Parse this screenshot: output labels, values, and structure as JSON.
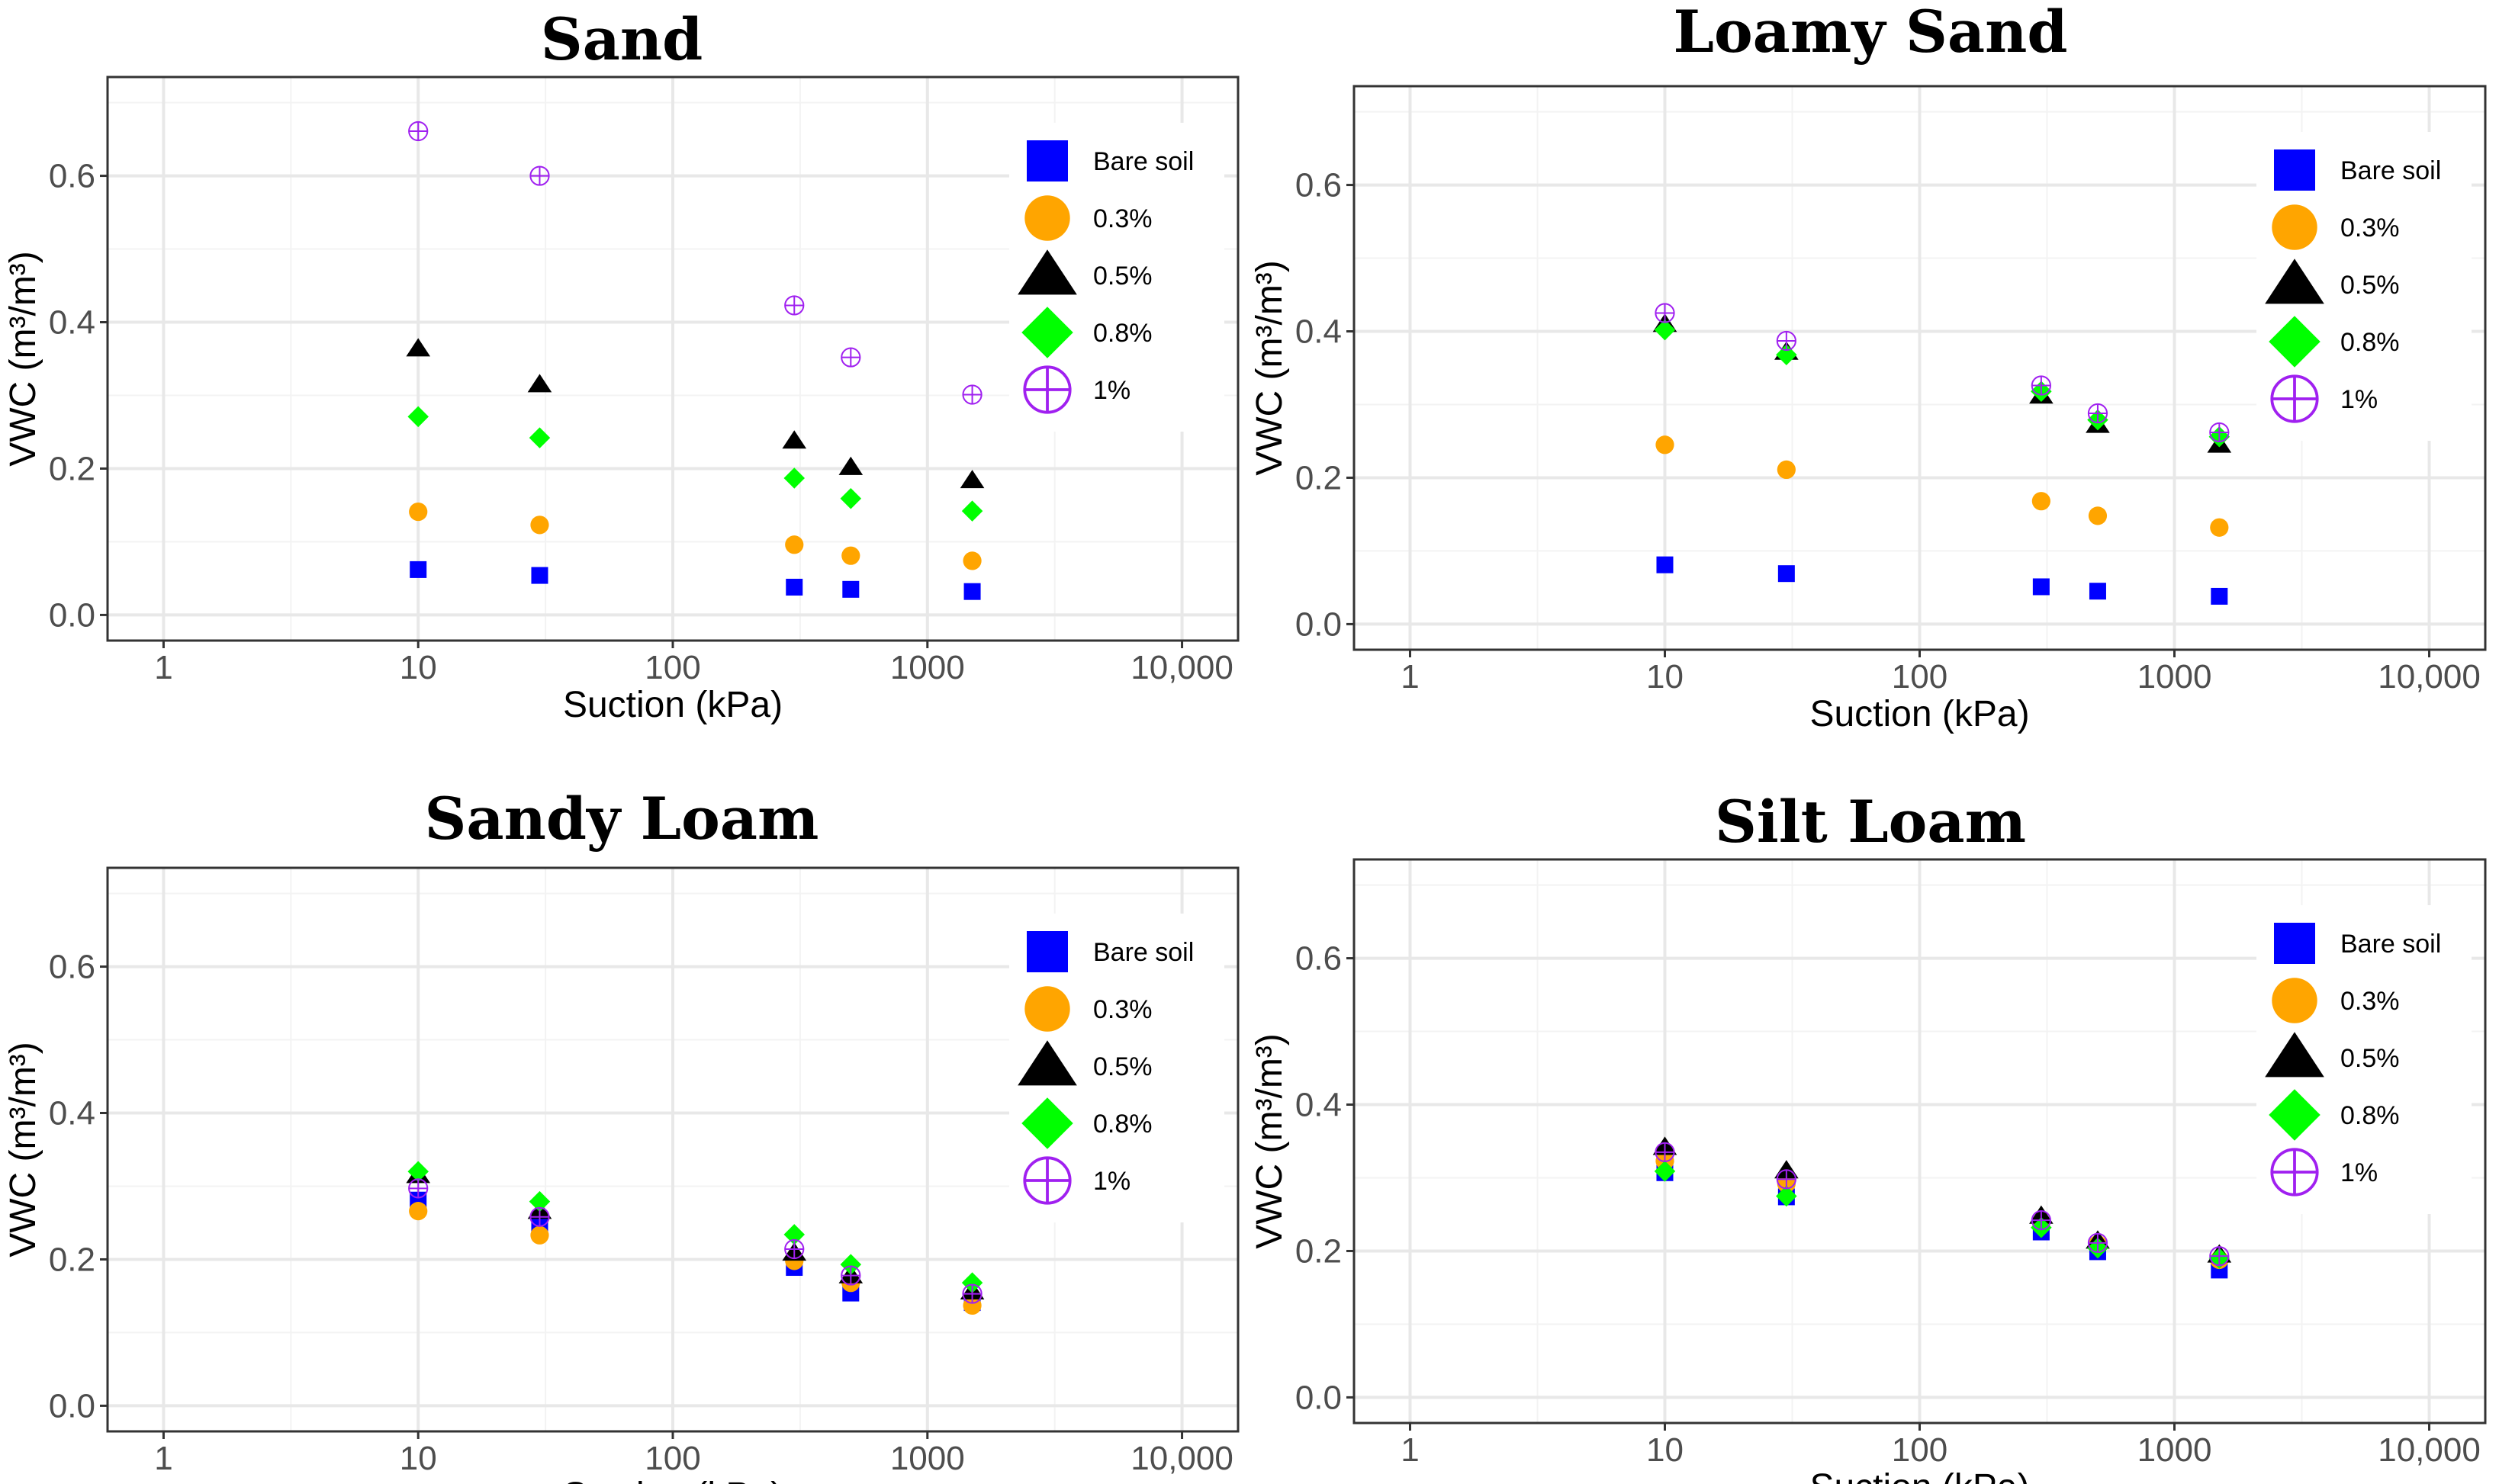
{
  "chart_data": [
    {
      "type": "scatter",
      "title": "Sand",
      "xlabel": "Suction (kPa)",
      "ylabel": "VWC (m³/m³)",
      "x_scale": "log",
      "xlim": [
        1,
        10000
      ],
      "ylim": [
        0,
        0.7
      ],
      "x_ticks": [
        1,
        10,
        100,
        1000,
        10000
      ],
      "x_tick_labels": [
        "1",
        "10",
        "100",
        "1000",
        "10,000"
      ],
      "y_ticks": [
        0,
        0.2,
        0.4,
        0.6
      ],
      "y_tick_labels": [
        "0.0",
        "0.2",
        "0.4",
        "0.6"
      ],
      "grid": true,
      "legend_position": "right",
      "x": [
        10,
        30,
        300,
        500,
        1500
      ],
      "series": [
        {
          "name": "Bare soil",
          "marker": "square",
          "color": "#0000ff",
          "values": [
            0.062,
            0.054,
            0.038,
            0.035,
            0.032
          ]
        },
        {
          "name": "0.3%",
          "marker": "circle",
          "color": "#ffa500",
          "values": [
            0.141,
            0.123,
            0.096,
            0.081,
            0.074
          ]
        },
        {
          "name": "0.5%",
          "marker": "triangle",
          "color": "#000000",
          "values": [
            0.364,
            0.315,
            0.238,
            0.202,
            0.184
          ]
        },
        {
          "name": "0.8%",
          "marker": "diamond",
          "color": "#00ff00",
          "values": [
            0.271,
            0.242,
            0.187,
            0.159,
            0.142
          ]
        },
        {
          "name": "1%",
          "marker": "circle-plus",
          "color": "#a020f0",
          "values": [
            0.661,
            0.6,
            0.423,
            0.352,
            0.301
          ]
        }
      ]
    },
    {
      "type": "scatter",
      "title": "Loamy Sand",
      "xlabel": "Suction (kPa)",
      "ylabel": "VWC (m³/m³)",
      "x_scale": "log",
      "xlim": [
        1,
        10000
      ],
      "ylim": [
        0,
        0.7
      ],
      "x_ticks": [
        1,
        10,
        100,
        1000,
        10000
      ],
      "x_tick_labels": [
        "1",
        "10",
        "100",
        "1000",
        "10,000"
      ],
      "y_ticks": [
        0,
        0.2,
        0.4,
        0.6
      ],
      "y_tick_labels": [
        "0.0",
        "0.2",
        "0.4",
        "0.6"
      ],
      "grid": true,
      "legend_position": "right",
      "x": [
        10,
        30,
        300,
        500,
        1500
      ],
      "series": [
        {
          "name": "Bare soil",
          "marker": "square",
          "color": "#0000ff",
          "values": [
            0.081,
            0.069,
            0.051,
            0.045,
            0.038
          ]
        },
        {
          "name": "0.3%",
          "marker": "circle",
          "color": "#ffa500",
          "values": [
            0.245,
            0.211,
            0.168,
            0.148,
            0.132
          ]
        },
        {
          "name": "0.5%",
          "marker": "triangle",
          "color": "#000000",
          "values": [
            0.41,
            0.372,
            0.312,
            0.272,
            0.245
          ]
        },
        {
          "name": "0.8%",
          "marker": "diamond",
          "color": "#00ff00",
          "values": [
            0.402,
            0.368,
            0.318,
            0.279,
            0.256
          ]
        },
        {
          "name": "1%",
          "marker": "circle-plus",
          "color": "#a020f0",
          "values": [
            0.425,
            0.387,
            0.326,
            0.288,
            0.262
          ]
        }
      ]
    },
    {
      "type": "scatter",
      "title": "Sandy Loam",
      "xlabel": "Suction (kPa)",
      "ylabel": "VWC (m³/m³)",
      "x_scale": "log",
      "xlim": [
        1,
        10000
      ],
      "ylim": [
        0,
        0.7
      ],
      "x_ticks": [
        1,
        10,
        100,
        1000,
        10000
      ],
      "x_tick_labels": [
        "1",
        "10",
        "100",
        "1000",
        "10,000"
      ],
      "y_ticks": [
        0,
        0.2,
        0.4,
        0.6
      ],
      "y_tick_labels": [
        "0.0",
        "0.2",
        "0.4",
        "0.6"
      ],
      "grid": true,
      "legend_position": "right",
      "x": [
        10,
        30,
        300,
        500,
        1500
      ],
      "series": [
        {
          "name": "Bare soil",
          "marker": "square",
          "color": "#0000ff",
          "values": [
            0.281,
            0.249,
            0.189,
            0.154,
            0.141
          ]
        },
        {
          "name": "0.3%",
          "marker": "circle",
          "color": "#ffa500",
          "values": [
            0.266,
            0.233,
            0.198,
            0.168,
            0.137
          ]
        },
        {
          "name": "0.5%",
          "marker": "triangle",
          "color": "#000000",
          "values": [
            0.315,
            0.266,
            0.209,
            0.178,
            0.156
          ]
        },
        {
          "name": "0.8%",
          "marker": "diamond",
          "color": "#00ff00",
          "values": [
            0.32,
            0.279,
            0.234,
            0.193,
            0.168
          ]
        },
        {
          "name": "1%",
          "marker": "circle-plus",
          "color": "#a020f0",
          "values": [
            0.297,
            0.258,
            0.214,
            0.178,
            0.153
          ]
        }
      ]
    },
    {
      "type": "scatter",
      "title": "Silt Loam",
      "xlabel": "Suction (kPa)",
      "ylabel": "VWC (m³/m³)",
      "x_scale": "log",
      "xlim": [
        1,
        10000
      ],
      "ylim": [
        0,
        0.7
      ],
      "x_ticks": [
        1,
        10,
        100,
        1000,
        10000
      ],
      "x_tick_labels": [
        "1",
        "10",
        "100",
        "1000",
        "10,000"
      ],
      "y_ticks": [
        0,
        0.2,
        0.4,
        0.6
      ],
      "y_tick_labels": [
        "0.0",
        "0.2",
        "0.4",
        "0.6"
      ],
      "grid": true,
      "legend_position": "right",
      "x": [
        10,
        30,
        300,
        500,
        1500
      ],
      "series": [
        {
          "name": "Bare soil",
          "marker": "square",
          "color": "#0000ff",
          "values": [
            0.307,
            0.274,
            0.226,
            0.199,
            0.174
          ]
        },
        {
          "name": "0.3%",
          "marker": "circle",
          "color": "#ffa500",
          "values": [
            0.323,
            0.292,
            0.239,
            0.209,
            0.188
          ]
        },
        {
          "name": "0.5%",
          "marker": "triangle",
          "color": "#000000",
          "values": [
            0.342,
            0.31,
            0.248,
            0.214,
            0.195
          ]
        },
        {
          "name": "0.8%",
          "marker": "diamond",
          "color": "#00ff00",
          "values": [
            0.309,
            0.275,
            0.232,
            0.204,
            0.19
          ]
        },
        {
          "name": "1%",
          "marker": "circle-plus",
          "color": "#a020f0",
          "values": [
            0.335,
            0.298,
            0.242,
            0.211,
            0.193
          ]
        }
      ]
    }
  ]
}
